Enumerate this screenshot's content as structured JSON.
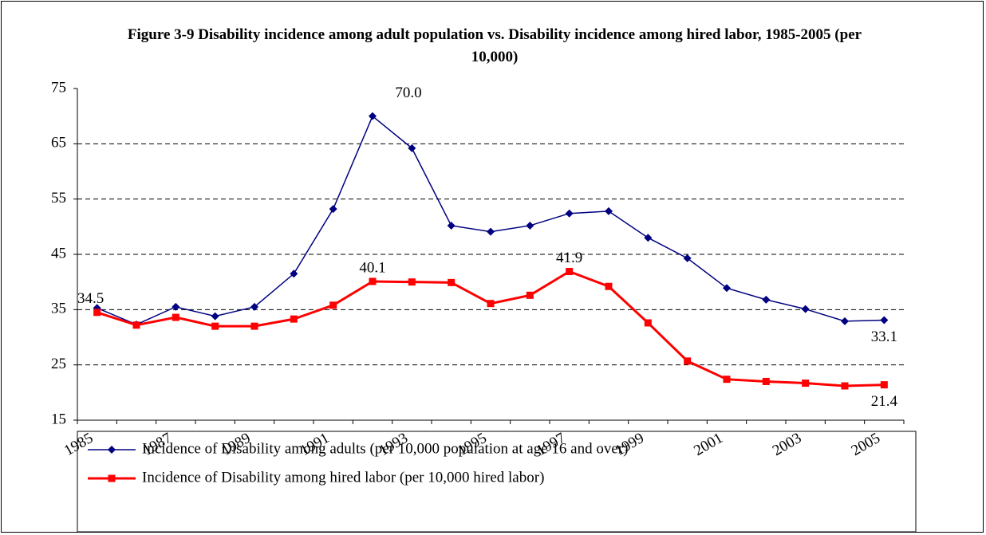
{
  "chart_data": {
    "type": "line",
    "title": "Figure 3-9 Disability incidence among adult  population  vs. Disability incidence among hired  labor, 1985-2005 (per 10,000)",
    "categories": [
      "1985",
      null,
      "1987",
      null,
      "1989",
      null,
      "1991",
      null,
      "1993",
      null,
      "1995",
      null,
      "1997",
      null,
      "1999",
      null,
      "2001",
      null,
      "2003",
      null,
      "2005"
    ],
    "series": [
      {
        "name": "Incidence of Disability among adults  (per 10,000 population at age 16 and over)",
        "color": "#000080",
        "marker": "diamond",
        "values": [
          35.3,
          32.3,
          35.5,
          33.8,
          35.5,
          41.5,
          53.2,
          70.0,
          64.2,
          50.2,
          49.1,
          50.2,
          52.4,
          52.8,
          48.0,
          44.3,
          38.9,
          36.8,
          35.1,
          32.9,
          33.1
        ],
        "value_labels": [
          null,
          null,
          null,
          null,
          null,
          null,
          null,
          "70.0",
          null,
          null,
          null,
          null,
          null,
          null,
          null,
          null,
          null,
          null,
          null,
          null,
          "33.1"
        ]
      },
      {
        "name": "Incidence of Disability among hired labor (per 10,000 hired labor)",
        "color": "#ff0000",
        "marker": "square",
        "values": [
          34.5,
          32.2,
          33.6,
          32.0,
          32.0,
          33.3,
          35.8,
          40.1,
          40.0,
          39.9,
          36.1,
          37.6,
          41.9,
          39.2,
          32.6,
          25.7,
          22.4,
          22.0,
          21.7,
          21.2,
          21.4
        ],
        "value_labels": [
          "34.5",
          null,
          null,
          null,
          null,
          null,
          null,
          "40.1",
          null,
          null,
          null,
          null,
          "41.9",
          null,
          null,
          null,
          null,
          null,
          null,
          null,
          "21.4"
        ]
      }
    ],
    "ylim": [
      15,
      75
    ],
    "yticks": [
      15,
      25,
      35,
      45,
      55,
      65,
      75
    ],
    "grid": true,
    "legend": "bottom"
  }
}
